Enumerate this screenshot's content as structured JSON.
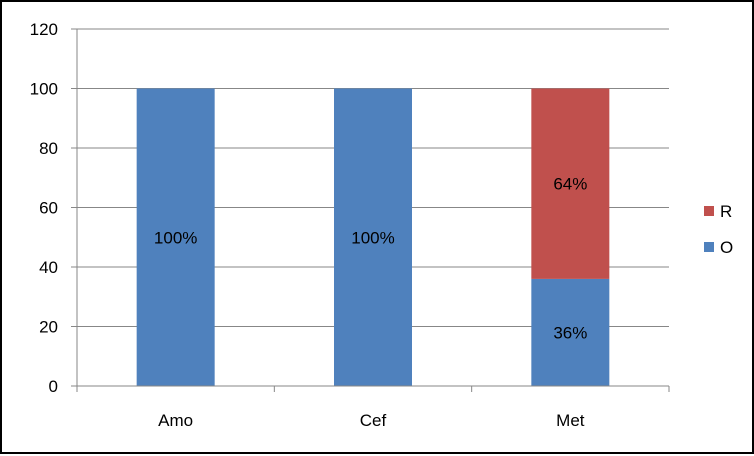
{
  "chart_data": {
    "type": "bar",
    "stacked": true,
    "categories": [
      "Amo",
      "Cef",
      "Met"
    ],
    "series": [
      {
        "name": "O",
        "values": [
          100,
          100,
          36
        ],
        "labels": [
          "100%",
          "100%",
          "36%"
        ],
        "color": "#4F81BD"
      },
      {
        "name": "R",
        "values": [
          0,
          0,
          64
        ],
        "labels": [
          "",
          "",
          "64%"
        ],
        "color": "#C0504D"
      }
    ],
    "ylim": [
      0,
      120
    ],
    "yticks": [
      0,
      20,
      40,
      60,
      80,
      100,
      120
    ],
    "grid": true,
    "legend_position": "right",
    "legend_order": [
      "R",
      "O"
    ]
  }
}
